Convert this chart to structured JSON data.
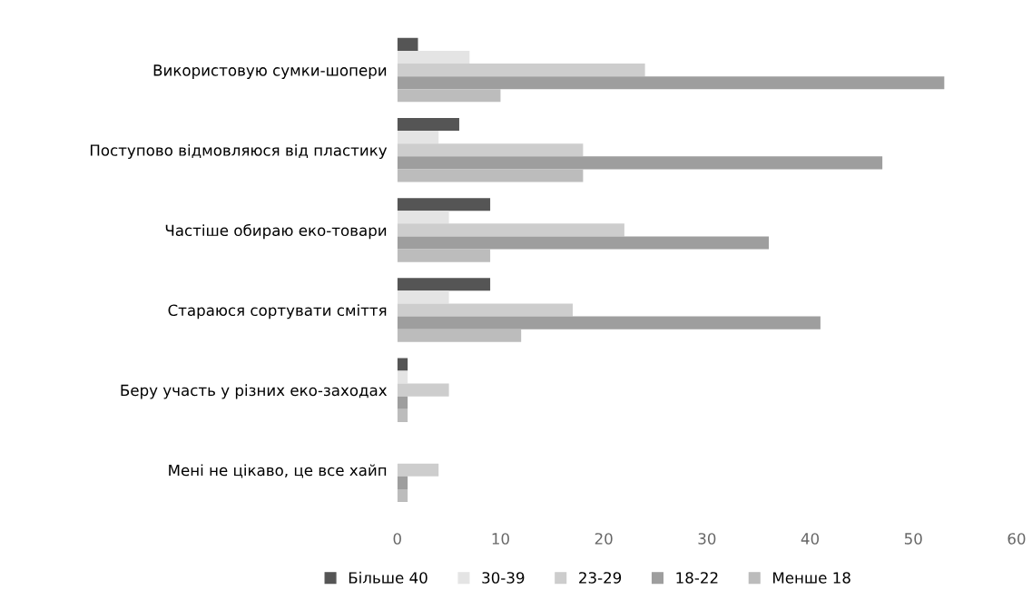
{
  "chart_data": {
    "type": "bar",
    "orientation": "horizontal",
    "categories": [
      "Використовую сумки-шопери",
      "Поступово відмовляюся від пластику",
      "Частіше обираю еко-товари",
      "Стараюся сортувати сміття",
      "Беру участь у різних еко-заходах",
      "Мені не цікаво, це все хайп"
    ],
    "series": [
      {
        "name": "Більше 40",
        "color": "#555555",
        "values": [
          2,
          6,
          9,
          9,
          1,
          0
        ]
      },
      {
        "name": "30-39",
        "color": "#e4e4e4",
        "values": [
          7,
          4,
          5,
          5,
          1,
          0
        ]
      },
      {
        "name": "23-29",
        "color": "#cdcdcd",
        "values": [
          24,
          18,
          22,
          17,
          5,
          4
        ]
      },
      {
        "name": "18-22",
        "color": "#9e9e9e",
        "values": [
          53,
          47,
          36,
          41,
          1,
          1
        ]
      },
      {
        "name": "Менше 18",
        "color": "#bcbcbc",
        "values": [
          10,
          18,
          9,
          12,
          1,
          1
        ]
      }
    ],
    "xlim": [
      0,
      60
    ],
    "xticks": [
      0,
      10,
      20,
      30,
      40,
      50,
      60
    ],
    "grid": false,
    "legend": "bottom"
  }
}
